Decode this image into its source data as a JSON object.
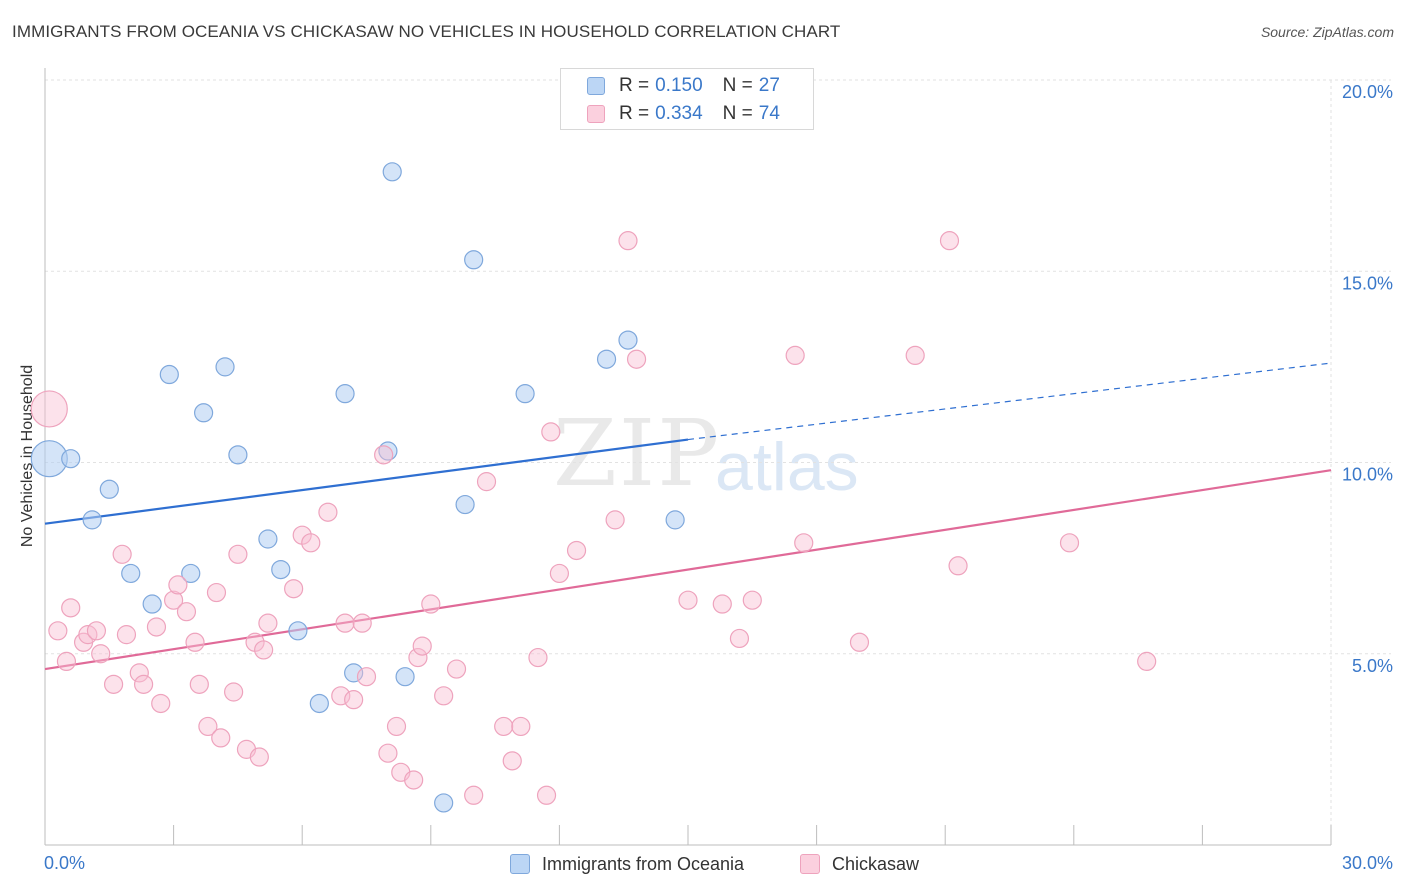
{
  "chart_data": {
    "type": "scatter",
    "title": "IMMIGRANTS FROM OCEANIA VS CHICKASAW NO VEHICLES IN HOUSEHOLD CORRELATION CHART",
    "source": "Source: ZipAtlas.com",
    "ylabel": "No Vehicles in Household",
    "xlim": [
      0,
      30
    ],
    "ylim": [
      0,
      20
    ],
    "x_tick_labels": [
      "0.0%",
      "30.0%"
    ],
    "y_ticks": [
      5,
      10,
      15,
      20
    ],
    "y_tick_labels": [
      "5.0%",
      "10.0%",
      "15.0%",
      "20.0%"
    ],
    "grid": true,
    "legend_position": "top-center",
    "watermark": "ZIPatlas",
    "series": [
      {
        "name": "Immigrants from Oceania",
        "color": "#a8c8f0",
        "line_color": "#2f6fd1",
        "R": "0.150",
        "N": "27",
        "trend": {
          "x0": 0,
          "y0": 8.4,
          "x1": 15,
          "y1": 10.6,
          "dashed_to_x": 30,
          "dashed_to_y": 12.6
        },
        "points": [
          [
            0.1,
            10.1,
            "large"
          ],
          [
            0.6,
            10.1
          ],
          [
            1.1,
            8.5
          ],
          [
            1.5,
            9.3
          ],
          [
            2.0,
            7.1
          ],
          [
            2.5,
            6.3
          ],
          [
            2.9,
            12.3
          ],
          [
            3.4,
            7.1
          ],
          [
            3.7,
            11.3
          ],
          [
            4.2,
            12.5
          ],
          [
            4.5,
            10.2
          ],
          [
            5.2,
            8.0
          ],
          [
            5.5,
            7.2
          ],
          [
            5.9,
            5.6
          ],
          [
            6.4,
            3.7
          ],
          [
            7.0,
            11.8
          ],
          [
            7.2,
            4.5
          ],
          [
            8.0,
            10.3
          ],
          [
            8.1,
            17.6
          ],
          [
            8.4,
            4.4
          ],
          [
            9.3,
            1.1
          ],
          [
            9.8,
            8.9
          ],
          [
            10.0,
            15.3
          ],
          [
            11.2,
            11.8
          ],
          [
            13.1,
            12.7
          ],
          [
            13.6,
            13.2
          ],
          [
            14.7,
            8.5
          ]
        ]
      },
      {
        "name": "Chickasaw",
        "color": "#f8bcd0",
        "line_color": "#e06a98",
        "R": "0.334",
        "N": "74",
        "trend": {
          "x0": 0,
          "y0": 4.6,
          "x1": 30,
          "y1": 9.8
        },
        "points": [
          [
            0.1,
            11.4,
            "large"
          ],
          [
            0.3,
            5.6
          ],
          [
            0.5,
            4.8
          ],
          [
            0.6,
            6.2
          ],
          [
            0.9,
            5.3
          ],
          [
            1.0,
            5.5
          ],
          [
            1.2,
            5.6
          ],
          [
            1.3,
            5.0
          ],
          [
            1.6,
            4.2
          ],
          [
            1.8,
            7.6
          ],
          [
            1.9,
            5.5
          ],
          [
            2.2,
            4.5
          ],
          [
            2.3,
            4.2
          ],
          [
            2.6,
            5.7
          ],
          [
            2.7,
            3.7
          ],
          [
            3.0,
            6.4
          ],
          [
            3.1,
            6.8
          ],
          [
            3.3,
            6.1
          ],
          [
            3.5,
            5.3
          ],
          [
            3.6,
            4.2
          ],
          [
            3.8,
            3.1
          ],
          [
            4.0,
            6.6
          ],
          [
            4.1,
            2.8
          ],
          [
            4.4,
            4.0
          ],
          [
            4.5,
            7.6
          ],
          [
            4.7,
            2.5
          ],
          [
            4.9,
            5.3
          ],
          [
            5.0,
            2.3
          ],
          [
            5.1,
            5.1
          ],
          [
            5.2,
            5.8
          ],
          [
            5.8,
            6.7
          ],
          [
            6.0,
            8.1
          ],
          [
            6.2,
            7.9
          ],
          [
            6.6,
            8.7
          ],
          [
            6.9,
            3.9
          ],
          [
            7.0,
            5.8
          ],
          [
            7.2,
            3.8
          ],
          [
            7.4,
            5.8
          ],
          [
            7.5,
            4.4
          ],
          [
            7.9,
            10.2
          ],
          [
            8.0,
            2.4
          ],
          [
            8.2,
            3.1
          ],
          [
            8.3,
            1.9
          ],
          [
            8.6,
            1.7
          ],
          [
            8.7,
            4.9
          ],
          [
            8.8,
            5.2
          ],
          [
            9.0,
            6.3
          ],
          [
            9.3,
            3.9
          ],
          [
            9.6,
            4.6
          ],
          [
            10.0,
            1.3
          ],
          [
            10.3,
            9.5
          ],
          [
            10.7,
            3.1
          ],
          [
            10.9,
            2.2
          ],
          [
            11.1,
            3.1
          ],
          [
            11.5,
            4.9
          ],
          [
            11.7,
            1.3
          ],
          [
            11.8,
            10.8
          ],
          [
            12.0,
            7.1
          ],
          [
            12.4,
            7.7
          ],
          [
            13.3,
            8.5
          ],
          [
            13.6,
            15.8
          ],
          [
            13.8,
            12.7
          ],
          [
            15.0,
            6.4
          ],
          [
            15.8,
            6.3
          ],
          [
            16.2,
            5.4
          ],
          [
            16.5,
            6.4
          ],
          [
            17.5,
            12.8
          ],
          [
            17.7,
            7.9
          ],
          [
            19.0,
            5.3
          ],
          [
            20.3,
            12.8
          ],
          [
            21.1,
            15.8
          ],
          [
            21.3,
            7.3
          ],
          [
            23.9,
            7.9
          ],
          [
            25.7,
            4.8
          ]
        ]
      }
    ]
  }
}
